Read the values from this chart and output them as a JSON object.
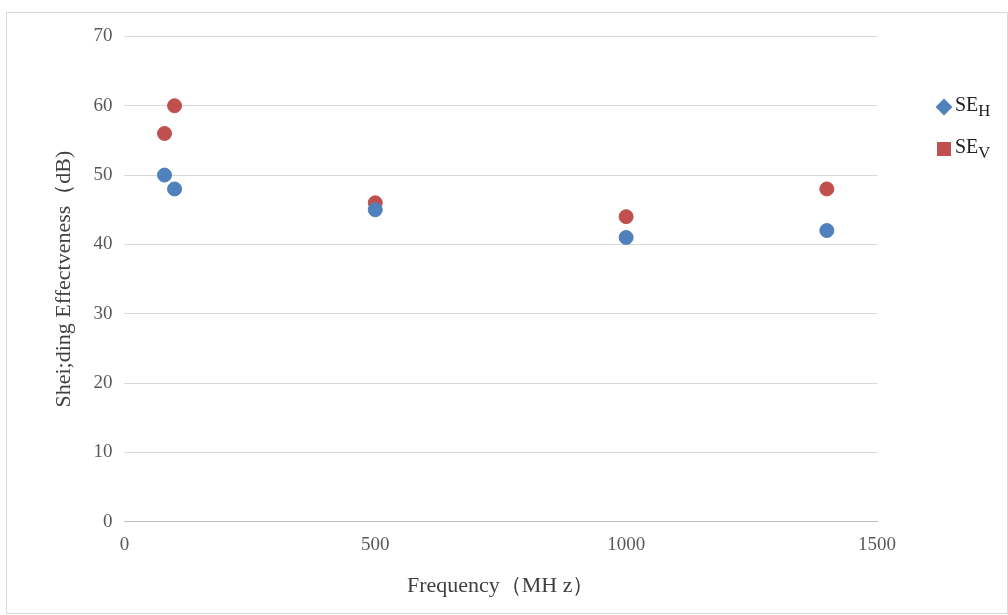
{
  "chart_data": {
    "type": "scatter",
    "xlabel": "Frequency（MH z）",
    "ylabel": "Shei;ding Effectveness（dB)",
    "x": [
      80,
      100,
      500,
      1000,
      1400
    ],
    "series": [
      {
        "name": "SE$_{H}$",
        "color": "#4f81bd",
        "values": [
          50,
          48,
          45,
          41,
          42
        ]
      },
      {
        "name": "SE$_{V}$",
        "color": "#c0504d",
        "values": [
          56,
          60,
          46,
          44,
          48
        ]
      }
    ],
    "xlim": [
      0,
      1500
    ],
    "xticks": [
      0,
      500,
      1000,
      1500
    ],
    "ylim": [
      0,
      70
    ],
    "yticks": [
      0,
      10,
      20,
      30,
      40,
      50,
      60,
      70
    ],
    "grid": "y",
    "legend": "right",
    "marker": "circle"
  }
}
